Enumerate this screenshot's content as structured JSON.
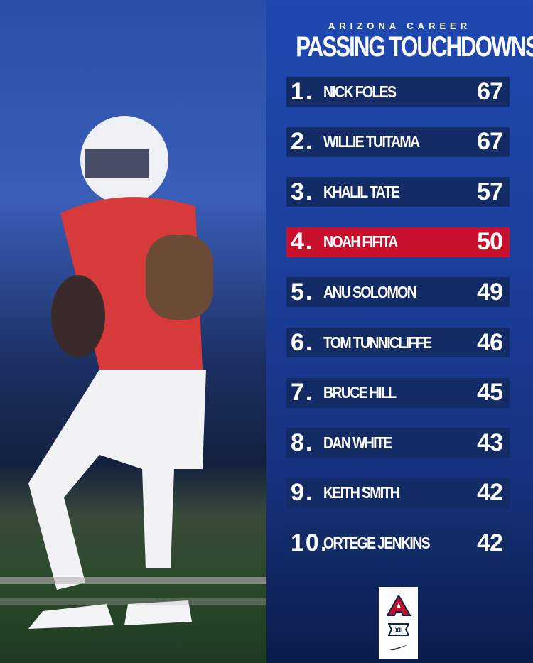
{
  "header": {
    "subtitle": "ARIZONA CAREER",
    "title": "PASSING TOUCHDOWNS"
  },
  "rows": [
    {
      "rank": "1.",
      "name": "NICK FOLES",
      "value": "67"
    },
    {
      "rank": "2.",
      "name": "WILLIE TUITAMA",
      "value": "67"
    },
    {
      "rank": "3.",
      "name": "KHALIL TATE",
      "value": "57"
    },
    {
      "rank": "4.",
      "name": "NOAH FIFITA",
      "value": "50",
      "highlight": true
    },
    {
      "rank": "5.",
      "name": "ANU SOLOMON",
      "value": "49"
    },
    {
      "rank": "6.",
      "name": "TOM TUNNICLIFFE",
      "value": "46"
    },
    {
      "rank": "7.",
      "name": "BRUCE HILL",
      "value": "45"
    },
    {
      "rank": "8.",
      "name": "DAN WHITE",
      "value": "43"
    },
    {
      "rank": "9.",
      "name": "KEITH SMITH",
      "value": "42"
    },
    {
      "rank": "10.",
      "name": "ORTEGE JENKINS",
      "value": "42"
    }
  ],
  "logos": {
    "university": "A",
    "conference": "XII"
  },
  "colors": {
    "highlight": "#c8102e",
    "row": "#142c66",
    "panel": "#1f48b0"
  }
}
